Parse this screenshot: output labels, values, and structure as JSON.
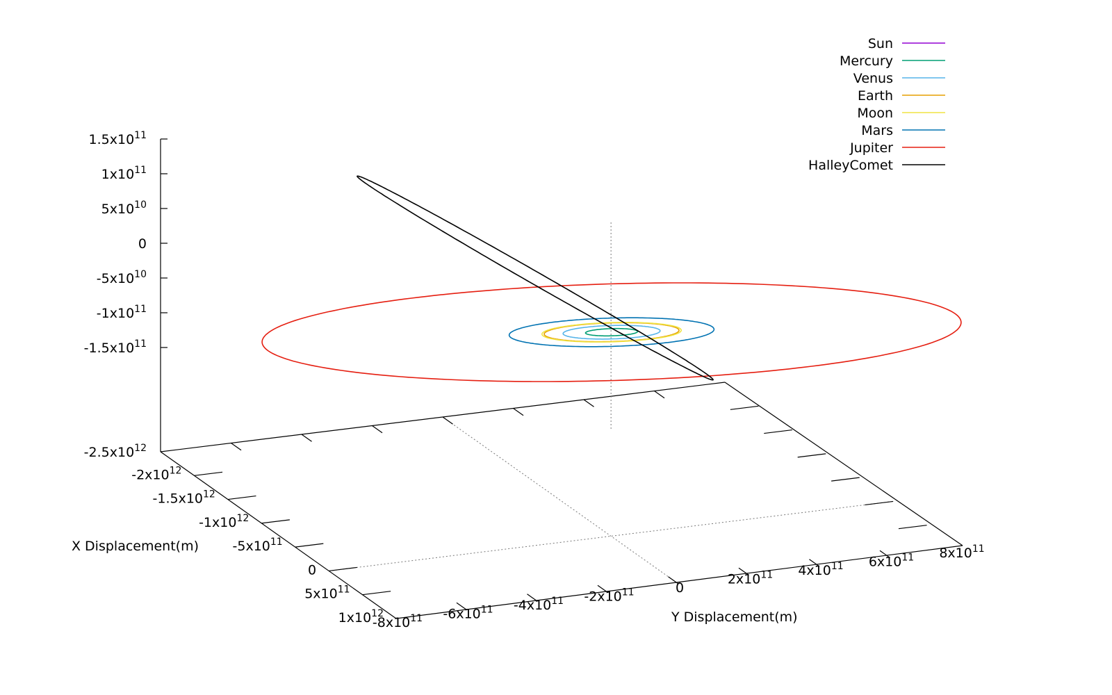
{
  "chart_data": {
    "type": "line",
    "title": "",
    "xlabel": "X Displacement(m)",
    "ylabel": "Y Displacement(m)",
    "zlabel": "",
    "legend_position": "top-right",
    "grid": false,
    "x_ticks": [
      {
        "value": -2500000000000.0,
        "base": "-2.5x10",
        "exp": "12"
      },
      {
        "value": -2000000000000.0,
        "base": "-2x10",
        "exp": "12"
      },
      {
        "value": -1500000000000.0,
        "base": "-1.5x10",
        "exp": "12"
      },
      {
        "value": -1000000000000.0,
        "base": "-1x10",
        "exp": "12"
      },
      {
        "value": -500000000000.0,
        "base": "-5x10",
        "exp": "11"
      },
      {
        "value": 0,
        "base": "0",
        "exp": ""
      },
      {
        "value": 500000000000.0,
        "base": "5x10",
        "exp": "11"
      },
      {
        "value": 1000000000000.0,
        "base": "1x10",
        "exp": "12"
      }
    ],
    "y_ticks": [
      {
        "value": -800000000000.0,
        "base": "-8x10",
        "exp": "11"
      },
      {
        "value": -600000000000.0,
        "base": "-6x10",
        "exp": "11"
      },
      {
        "value": -400000000000.0,
        "base": "-4x10",
        "exp": "11"
      },
      {
        "value": -200000000000.0,
        "base": "-2x10",
        "exp": "11"
      },
      {
        "value": 0,
        "base": "0",
        "exp": ""
      },
      {
        "value": 200000000000.0,
        "base": "2x10",
        "exp": "11"
      },
      {
        "value": 400000000000.0,
        "base": "4x10",
        "exp": "11"
      },
      {
        "value": 600000000000.0,
        "base": "6x10",
        "exp": "11"
      },
      {
        "value": 800000000000.0,
        "base": "8x10",
        "exp": "11"
      }
    ],
    "z_ticks": [
      {
        "value": 150000000000.0,
        "base": "1.5x10",
        "exp": "11"
      },
      {
        "value": 100000000000.0,
        "base": "1x10",
        "exp": "11"
      },
      {
        "value": 50000000000.0,
        "base": "5x10",
        "exp": "10"
      },
      {
        "value": 0,
        "base": "0",
        "exp": ""
      },
      {
        "value": -50000000000.0,
        "base": "-5x10",
        "exp": "10"
      },
      {
        "value": -100000000000.0,
        "base": "-1x10",
        "exp": "11"
      },
      {
        "value": -150000000000.0,
        "base": "-1.5x10",
        "exp": "11"
      }
    ],
    "series": [
      {
        "name": "Sun",
        "color": "#9400d3",
        "orbit": "point",
        "radius": 0,
        "center": [
          0,
          0
        ]
      },
      {
        "name": "Mercury",
        "color": "#009e73",
        "orbit": "circle",
        "radius": 58000000000.0,
        "center": [
          0,
          0
        ]
      },
      {
        "name": "Venus",
        "color": "#56b4e9",
        "orbit": "circle",
        "radius": 108000000000.0,
        "center": [
          0,
          0
        ]
      },
      {
        "name": "Earth",
        "color": "#e69f00",
        "orbit": "circle",
        "radius": 150000000000.0,
        "center": [
          0,
          0
        ]
      },
      {
        "name": "Moon",
        "color": "#f0e442",
        "orbit": "circle",
        "radius": 155000000000.0,
        "center": [
          0,
          0
        ]
      },
      {
        "name": "Mars",
        "color": "#0072b2",
        "orbit": "circle",
        "radius": 228000000000.0,
        "center": [
          0,
          0
        ]
      },
      {
        "name": "Jupiter",
        "color": "#e51e10",
        "orbit": "circle",
        "radius": 778000000000.0,
        "center": [
          0,
          0
        ]
      },
      {
        "name": "HalleyComet",
        "color": "#000000",
        "orbit": "ellipse",
        "semi_major": 2670000000000.0,
        "semi_minor": 140000000000.0,
        "center": [
          -1300000000000.0,
          -20000000000.0
        ]
      }
    ]
  }
}
